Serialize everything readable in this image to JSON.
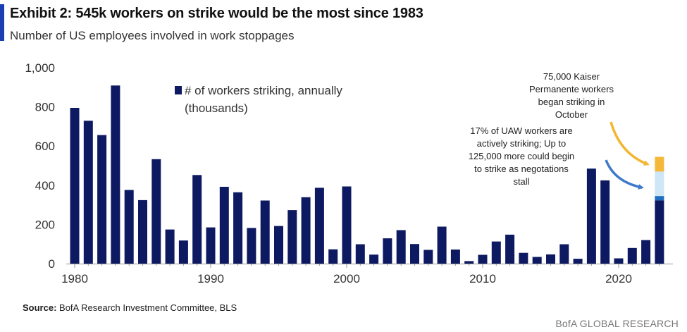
{
  "header": {
    "title": "Exhibit 2: 545k workers on strike would be the most since 1983",
    "subtitle": "Number of US employees involved in work stoppages"
  },
  "footer": {
    "source_label": "Source:",
    "source_text": "BofA Research Investment Committee, BLS",
    "brand": "BofA GLOBAL RESEARCH"
  },
  "colors": {
    "bar": "#0d1a61",
    "uaw_bar_mid": "#1f6fc0",
    "uaw_extra": "#cfe6f6",
    "kaiser": "#f5b93a",
    "arrow_yellow": "#f2b630",
    "arrow_blue": "#3f79c9",
    "axis": "#999999"
  },
  "chart_data": {
    "type": "bar",
    "title": "Exhibit 2: 545k workers on strike would be the most since 1983",
    "subtitle": "Number of US employees involved in work stoppages",
    "legend": "# of workers striking, annually (thousands)",
    "legend_lines": [
      "# of workers striking, annually",
      "(thousands)"
    ],
    "legend_position": "top-left",
    "xlabel": "",
    "ylabel": "",
    "ylim": [
      0,
      1000
    ],
    "yticks": [
      0,
      200,
      400,
      600,
      800,
      1000
    ],
    "ytick_labels": [
      "0",
      "200",
      "400",
      "600",
      "800",
      "1,000"
    ],
    "xticks": [
      1980,
      1990,
      2000,
      2010,
      2020
    ],
    "years": [
      1980,
      1981,
      1982,
      1983,
      1984,
      1985,
      1986,
      1987,
      1988,
      1989,
      1990,
      1991,
      1992,
      1993,
      1994,
      1995,
      1996,
      1997,
      1998,
      1999,
      2000,
      2001,
      2002,
      2003,
      2004,
      2005,
      2006,
      2007,
      2008,
      2009,
      2010,
      2011,
      2012,
      2013,
      2014,
      2015,
      2016,
      2017,
      2018,
      2019,
      2020,
      2021,
      2022,
      2023
    ],
    "values": [
      795,
      729,
      656,
      909,
      376,
      324,
      533,
      174,
      118,
      452,
      185,
      392,
      364,
      182,
      322,
      192,
      273,
      339,
      387,
      73,
      394,
      99,
      46,
      129,
      171,
      100,
      70,
      189,
      72,
      13,
      45,
      113,
      148,
      55,
      34,
      47,
      99,
      25,
      485,
      425,
      27,
      80,
      120,
      323
    ],
    "stacked_2023": {
      "year": 2023,
      "segments": [
        {
          "name": "Currently striking",
          "value": 323
        },
        {
          "name": "UAW workers actively striking",
          "value": 22
        },
        {
          "name": "UAW workers that could begin to strike",
          "value": 125
        },
        {
          "name": "Kaiser Permanente workers",
          "value": 75
        }
      ],
      "total": 545
    },
    "annotations": {
      "kaiser_lines": [
        "75,000 Kaiser",
        "Permanente workers",
        "began striking in",
        "October"
      ],
      "uaw_lines": [
        "17% of UAW workers are",
        "actively striking; Up to",
        "125,000 more could begin",
        "to strike as negotations",
        "stall"
      ]
    }
  }
}
